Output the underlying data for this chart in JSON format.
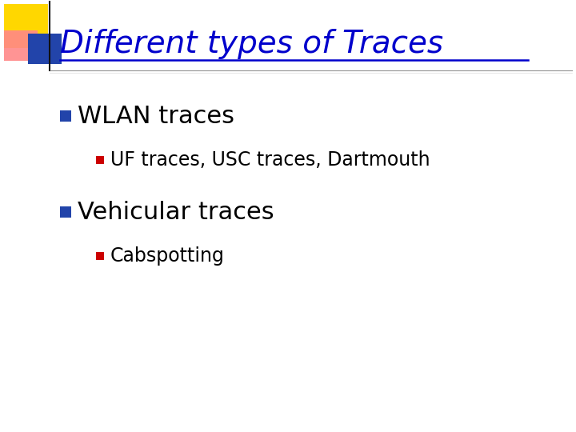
{
  "title": "Different types of Traces",
  "title_color": "#0000CC",
  "title_fontsize": 28,
  "background_color": "#FFFFFF",
  "bullet1": "WLAN traces",
  "bullet1_color": "#000000",
  "bullet1_fontsize": 22,
  "bullet1_marker_color": "#2244AA",
  "sub_bullet1": "UF traces, USC traces, Dartmouth",
  "sub_bullet1_color": "#000000",
  "sub_bullet1_fontsize": 17,
  "sub_bullet1_marker_color": "#CC0000",
  "bullet2": "Vehicular traces",
  "bullet2_color": "#000000",
  "bullet2_fontsize": 22,
  "bullet2_marker_color": "#2244AA",
  "sub_bullet2": "Cabspotting",
  "sub_bullet2_color": "#000000",
  "sub_bullet2_fontsize": 17,
  "sub_bullet2_marker_color": "#CC0000",
  "logo_yellow_color": "#FFD700",
  "logo_red_color": "#FF8888",
  "logo_blue_color": "#2244AA",
  "separator_color": "#666666"
}
